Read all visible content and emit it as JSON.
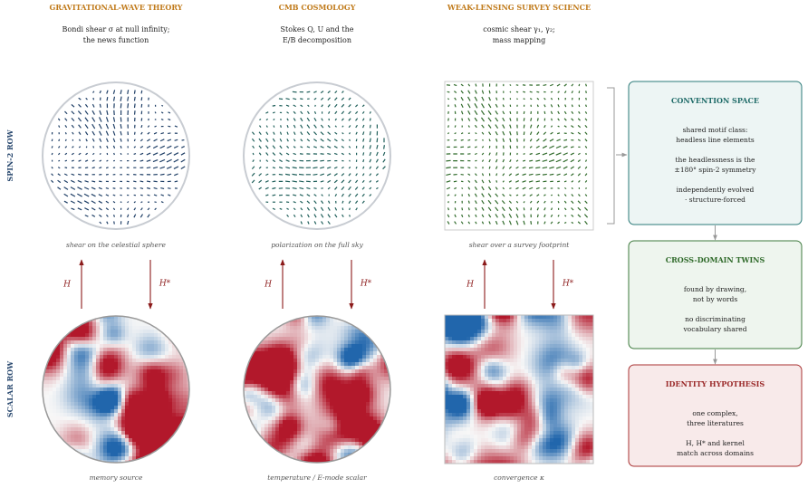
{
  "rows": [
    "SPIN-2 ROW",
    "SCALAR ROW"
  ],
  "columns": [
    {
      "title": "GRAVITATIONAL-WAVE THEORY",
      "subtitle": [
        "Bondi shear σ at null infinity;",
        "the news function"
      ],
      "spin_caption": "shear on the celestial sphere",
      "scalar_caption": "memory source",
      "up_label": "H",
      "down_label": "H*"
    },
    {
      "title": "CMB COSMOLOGY",
      "subtitle": [
        "Stokes Q, U and the",
        "E/B decomposition"
      ],
      "spin_caption": "polarization on the full sky",
      "scalar_caption": "temperature / E-mode scalar",
      "up_label": "H",
      "down_label": "H*"
    },
    {
      "title": "WEAK-LENSING SURVEY SCIENCE",
      "subtitle": [
        "cosmic shear γ₁, γ₂;",
        "mass mapping"
      ],
      "spin_caption": "shear over a survey footprint",
      "scalar_caption": "convergence κ",
      "up_label": "H",
      "down_label": "H*"
    }
  ],
  "boxes": [
    {
      "title": "CONVENTION SPACE",
      "paragraphs": [
        [
          "shared motif class:",
          "headless line elements"
        ],
        [
          "the headlessness is the",
          "±180° spin-2 symmetry"
        ],
        [
          "independently evolved",
          "· structure-forced"
        ]
      ]
    },
    {
      "title": "CROSS-DOMAIN TWINS",
      "paragraphs": [
        [
          "found by drawing,",
          "not by words"
        ],
        [
          "no discriminating",
          "vocabulary shared"
        ]
      ]
    },
    {
      "title": "IDENTITY HYPOTHESIS",
      "paragraphs": [
        [
          "one complex,",
          "three literatures"
        ],
        [
          "H, H* and kernel",
          "match across domains"
        ]
      ]
    }
  ]
}
